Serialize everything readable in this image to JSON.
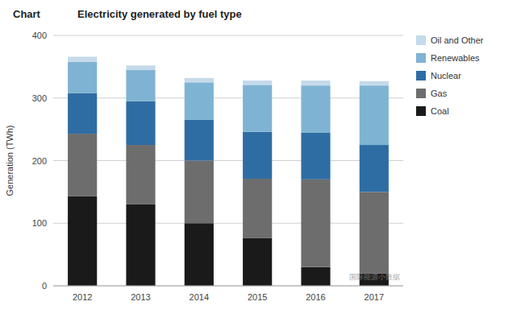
{
  "chart_data": {
    "type": "bar",
    "stacked": true,
    "title": "Electricity generated by fuel type",
    "annotations": [
      {
        "text": "Chart"
      },
      {
        "text": "国际能源小数据"
      }
    ],
    "ylabel": "Generation (TWh)",
    "categories": [
      "2012",
      "2013",
      "2014",
      "2015",
      "2016",
      "2017"
    ],
    "series": [
      {
        "name": "Coal",
        "color": "#1a1a1a",
        "values": [
          143,
          130,
          100,
          76,
          30,
          20
        ]
      },
      {
        "name": "Gas",
        "color": "#6d6d6d",
        "values": [
          100,
          95,
          100,
          95,
          140,
          130
        ]
      },
      {
        "name": "Nuclear",
        "color": "#2e6da4",
        "values": [
          65,
          70,
          65,
          75,
          75,
          75
        ]
      },
      {
        "name": "Renewables",
        "color": "#7fb3d3",
        "values": [
          50,
          50,
          60,
          75,
          75,
          95
        ]
      },
      {
        "name": "Oil and Other",
        "color": "#c5daea",
        "values": [
          8,
          7,
          7,
          7,
          8,
          7
        ]
      }
    ],
    "ylim": [
      0,
      400
    ],
    "yticks": [
      0,
      100,
      200,
      300,
      400
    ],
    "grid": true,
    "legend": "right"
  }
}
